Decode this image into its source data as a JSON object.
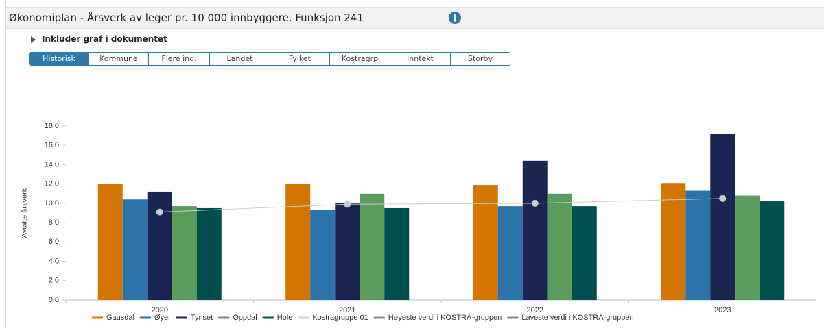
{
  "header": {
    "title": "Økonomiplan - Årsverk av leger pr. 10 000 innbyggere. Funksjon 241"
  },
  "toggle": {
    "label": "Inkluder graf i dokumentet"
  },
  "tabs": {
    "items": [
      "Historisk",
      "Kommune",
      "Flere ind.",
      "Landet",
      "Fylket",
      "Kostragrp",
      "Inntekt",
      "Storby"
    ],
    "active": 0
  },
  "chart_data": {
    "type": "bar",
    "ylabel": "Avtalte årsverk",
    "categories": [
      "2020",
      "2021",
      "2022",
      "2023"
    ],
    "series": [
      {
        "name": "Gausdal",
        "color": "#d47500",
        "values": [
          12.0,
          12.0,
          11.9,
          12.1
        ]
      },
      {
        "name": "Øyer",
        "color": "#2a73ab",
        "values": [
          10.4,
          9.3,
          9.7,
          11.3
        ]
      },
      {
        "name": "Tynset",
        "color": "#1a2551",
        "values": [
          11.2,
          10.0,
          14.4,
          17.2
        ]
      },
      {
        "name": "Oppdal",
        "color": "#5b9c5b",
        "values": [
          9.7,
          11.0,
          11.0,
          10.8
        ]
      },
      {
        "name": "Hole",
        "color": "#004f4f",
        "values": [
          9.5,
          9.5,
          9.7,
          10.2
        ]
      },
      {
        "name": "Kostragruppe 01",
        "color": "#b8d8d4",
        "type": "line",
        "values": [
          9.1,
          9.9,
          10.0,
          10.5
        ]
      },
      {
        "name": "Høyeste verdi i KOSTRA-gruppen",
        "color": "#8a8a8a",
        "type": "line",
        "values": [
          null,
          null,
          null,
          null
        ]
      },
      {
        "name": "Laveste verdi i KOSTRA-gruppen",
        "color": "#8a8a8a",
        "type": "line",
        "values": [
          null,
          null,
          null,
          null
        ]
      }
    ],
    "ylim": [
      0,
      18
    ],
    "yticks": [
      {
        "value": 0,
        "label": "0,0"
      },
      {
        "value": 2,
        "label": "2,0"
      },
      {
        "value": 4,
        "label": "4,0"
      },
      {
        "value": 6,
        "label": "6,0"
      },
      {
        "value": 8,
        "label": "8,0"
      },
      {
        "value": 10,
        "label": "10,0"
      },
      {
        "value": 12,
        "label": "12,0"
      },
      {
        "value": 14,
        "label": "14,0"
      },
      {
        "value": 16,
        "label": "16,0"
      },
      {
        "value": 18,
        "label": "18,0"
      }
    ],
    "grid": false
  }
}
